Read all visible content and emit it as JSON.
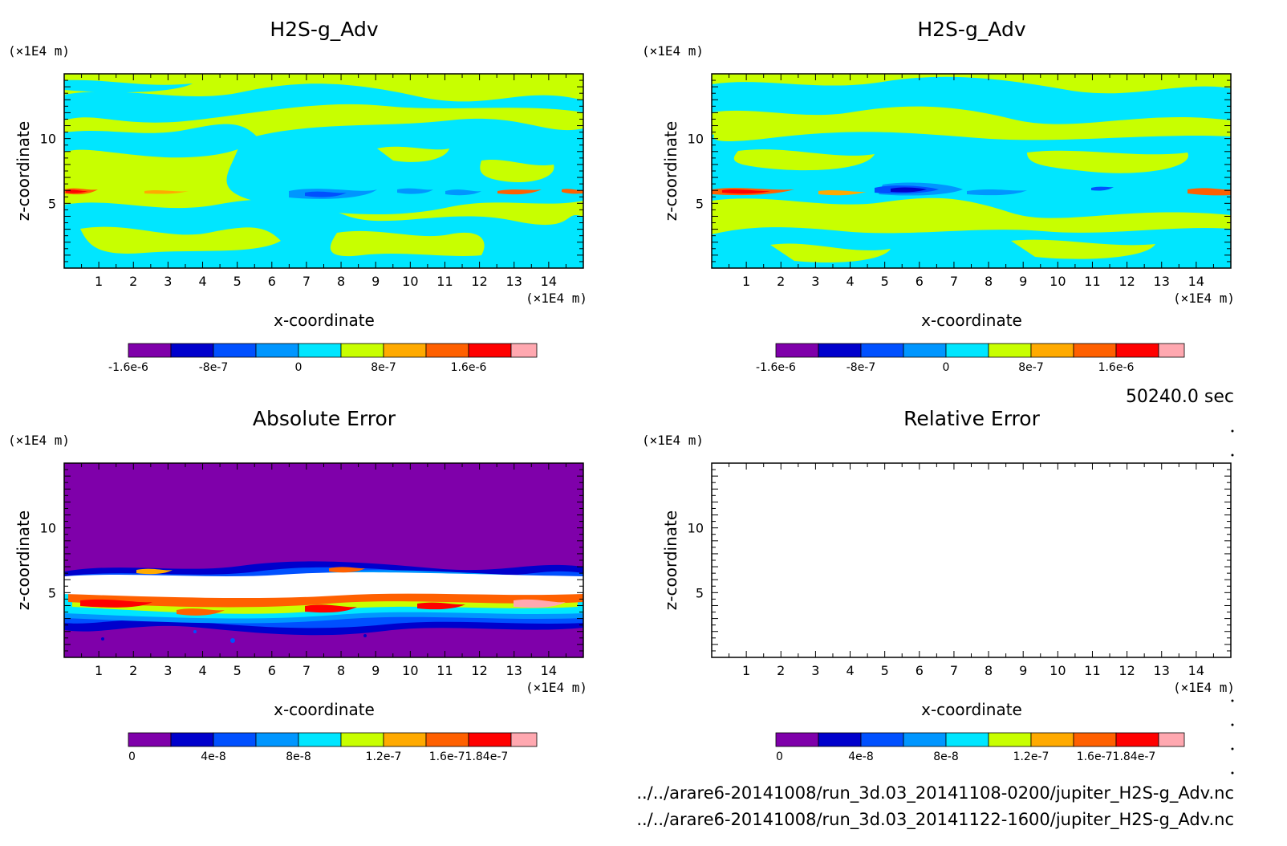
{
  "timestamp": "50240.0 sec",
  "files": [
    "../../arare6-20141008/run_3d.03_20141108-0200/jupiter_H2S-g_Adv.nc",
    "../../arare6-20141008/run_3d.03_20141122-1600/jupiter_H2S-g_Adv.nc"
  ],
  "chart_data": [
    {
      "type": "heatmap",
      "title": "H2S-g_Adv",
      "xlabel": "x-coordinate",
      "ylabel": "z-coordinate",
      "x_unit": "(×1E4 m)",
      "y_unit": "(×1E4 m)",
      "xlim": [
        0,
        15
      ],
      "ylim": [
        0,
        15
      ],
      "x_ticks": [
        "1",
        "2",
        "3",
        "4",
        "5",
        "6",
        "7",
        "8",
        "9",
        "10",
        "11",
        "12",
        "13",
        "14"
      ],
      "y_ticks": [
        "5",
        "10"
      ],
      "colorbar": {
        "colors": [
          "#7f00aa",
          "#0000cc",
          "#0050ff",
          "#0096ff",
          "#00e6ff",
          "#c8ff00",
          "#ffaa00",
          "#ff6000",
          "#ff0000",
          "#ffa8b0"
        ],
        "tick_labels": [
          "-1.6e-6",
          "-8e-7",
          "0",
          "8e-7",
          "1.6e-6"
        ]
      },
      "field": "advection tendency, mostly near zero (cyan/yellow-green), negative blue core and positive red streaks near z=5.8"
    },
    {
      "type": "heatmap",
      "title": "H2S-g_Adv",
      "xlabel": "x-coordinate",
      "ylabel": "z-coordinate",
      "x_unit": "(×1E4 m)",
      "y_unit": "(×1E4 m)",
      "xlim": [
        0,
        15
      ],
      "ylim": [
        0,
        15
      ],
      "x_ticks": [
        "1",
        "2",
        "3",
        "4",
        "5",
        "6",
        "7",
        "8",
        "9",
        "10",
        "11",
        "12",
        "13",
        "14"
      ],
      "y_ticks": [
        "5",
        "10"
      ],
      "colorbar": {
        "colors": [
          "#7f00aa",
          "#0000cc",
          "#0050ff",
          "#0096ff",
          "#00e6ff",
          "#c8ff00",
          "#ffaa00",
          "#ff6000",
          "#ff0000",
          "#ffa8b0"
        ],
        "tick_labels": [
          "-1.6e-6",
          "-8e-7",
          "0",
          "8e-7",
          "1.6e-6"
        ]
      },
      "field": "advection tendency, strong negative core near x=6, z=5.8"
    },
    {
      "type": "heatmap",
      "title": "Absolute Error",
      "xlabel": "x-coordinate",
      "ylabel": "z-coordinate",
      "x_unit": "(×1E4 m)",
      "y_unit": "(×1E4 m)",
      "xlim": [
        0,
        15
      ],
      "ylim": [
        0,
        15
      ],
      "x_ticks": [
        "1",
        "2",
        "3",
        "4",
        "5",
        "6",
        "7",
        "8",
        "9",
        "10",
        "11",
        "12",
        "13",
        "14"
      ],
      "y_ticks": [
        "5",
        "10"
      ],
      "colorbar": {
        "colors": [
          "#7f00aa",
          "#0000cc",
          "#0050ff",
          "#0096ff",
          "#00e6ff",
          "#c8ff00",
          "#ffaa00",
          "#ff6000",
          "#ff0000",
          "#ffa8b0"
        ],
        "tick_labels": [
          "0",
          "4e-8",
          "8e-8",
          "1.2e-7",
          "1.6e-71.84e-7"
        ]
      },
      "field": "error near zero everywhere except band z=3..7 with maxima (white saturated) around z=5.5"
    },
    {
      "type": "heatmap",
      "title": "Relative Error",
      "xlabel": "x-coordinate",
      "ylabel": "z-coordinate",
      "x_unit": "(×1E4 m)",
      "y_unit": "(×1E4 m)",
      "xlim": [
        0,
        15
      ],
      "ylim": [
        0,
        15
      ],
      "x_ticks": [
        "1",
        "2",
        "3",
        "4",
        "5",
        "6",
        "7",
        "8",
        "9",
        "10",
        "11",
        "12",
        "13",
        "14"
      ],
      "y_ticks": [
        "5",
        "10"
      ],
      "colorbar": {
        "colors": [
          "#7f00aa",
          "#0000cc",
          "#0050ff",
          "#0096ff",
          "#00e6ff",
          "#c8ff00",
          "#ffaa00",
          "#ff6000",
          "#ff0000",
          "#ffa8b0"
        ],
        "tick_labels": [
          "0",
          "4e-8",
          "8e-8",
          "1.2e-7",
          "1.6e-71.84e-7"
        ]
      },
      "field": "blank (no values plotted)"
    }
  ]
}
